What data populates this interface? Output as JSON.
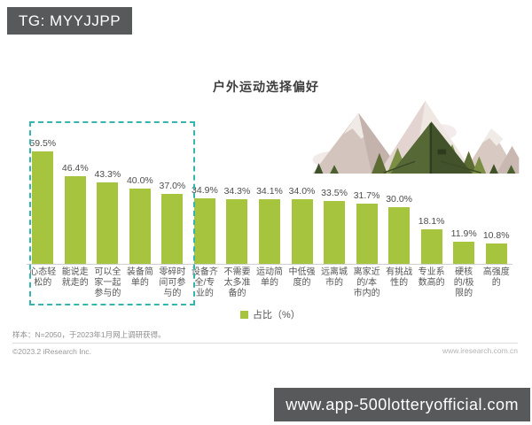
{
  "badges": {
    "tg": "TG: MYYJJPP",
    "site": "www.app-500lotteryofficial.com"
  },
  "chart_data": {
    "type": "bar",
    "title": "户外运动选择偏好",
    "categories": [
      "心态轻松的",
      "能说走就走的",
      "可以全家一起参与的",
      "装备简单的",
      "零碎时间可参与的",
      "设备齐全/专业的",
      "不需要太多准备的",
      "运动简单的",
      "中低强度的",
      "远离城市的",
      "离家近的/本市内的",
      "有挑战性的",
      "专业系数高的",
      "硬核的/极限的",
      "高强度的"
    ],
    "values": [
      59.5,
      46.4,
      43.3,
      40.0,
      37.0,
      34.9,
      34.3,
      34.1,
      34.0,
      33.5,
      31.7,
      30.0,
      18.1,
      11.9,
      10.8
    ],
    "unit": "%",
    "xlabel": "",
    "ylabel": "占比（%）",
    "ylim": [
      0,
      65
    ],
    "grid": false,
    "legend": {
      "label": "占比（%）",
      "position": "bottom-center"
    },
    "bar_color": "#a6c43d",
    "value_labels_shown": true,
    "highlight_box": {
      "first_n_bars": 5,
      "border_color": "#35b5ae",
      "style": "dashed"
    }
  },
  "footer": {
    "sample_note": "样本：N=2050，于2023年1月网上调研获得。",
    "copyright": "©2023.2 iResearch Inc.",
    "website": "www.iresearch.com.cn"
  },
  "colors": {
    "bar": "#a6c43d",
    "highlight_border": "#35b5ae",
    "badge_bg": "#58595b",
    "badge_text": "#ffffff"
  }
}
